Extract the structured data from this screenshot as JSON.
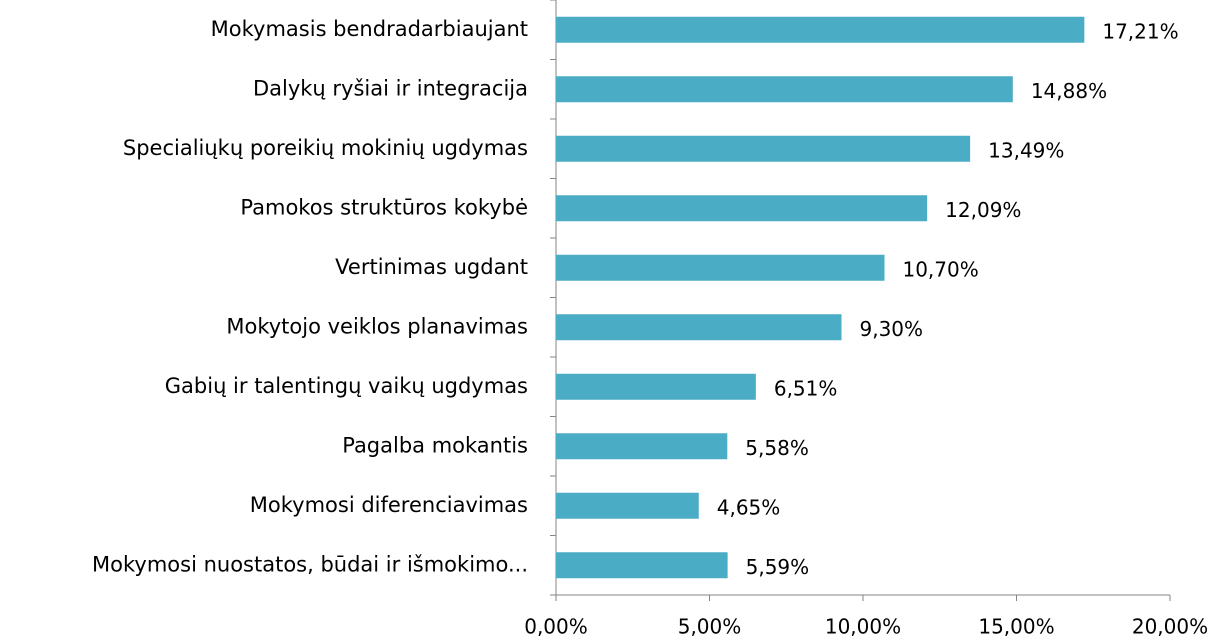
{
  "chart_data": {
    "type": "bar",
    "orientation": "horizontal",
    "categories": [
      "Mokymasis bendradarbiaujant",
      "Dalykų ryšiai ir integracija",
      "Specialiųkų poreikių mokinių ugdymas",
      "Pamokos struktūros kokybė",
      "Vertinimas ugdant",
      "Mokytojo veiklos planavimas",
      "Gabių ir talentingų vaikų ugdymas",
      "Pagalba mokantis",
      "Mokymosi diferenciavimas",
      "Mokymosi nuostatos, būdai ir išmokimo..."
    ],
    "values": [
      17.21,
      14.88,
      13.49,
      12.09,
      10.7,
      9.3,
      6.51,
      5.58,
      4.65,
      5.59
    ],
    "value_labels": [
      "17,21%",
      "14,88%",
      "13,49%",
      "12,09%",
      "10,70%",
      "9,30%",
      "6,51%",
      "5,58%",
      "4,65%",
      "5,59%"
    ],
    "color": "#4bacc6",
    "xlim": [
      0,
      20
    ],
    "xticks": [
      {
        "value": 0,
        "label": "0,00%"
      },
      {
        "value": 5,
        "label": "5,00%"
      },
      {
        "value": 10,
        "label": "10,00%"
      },
      {
        "value": 15,
        "label": "15,00%"
      },
      {
        "value": 20,
        "label": "20,00%"
      }
    ]
  }
}
